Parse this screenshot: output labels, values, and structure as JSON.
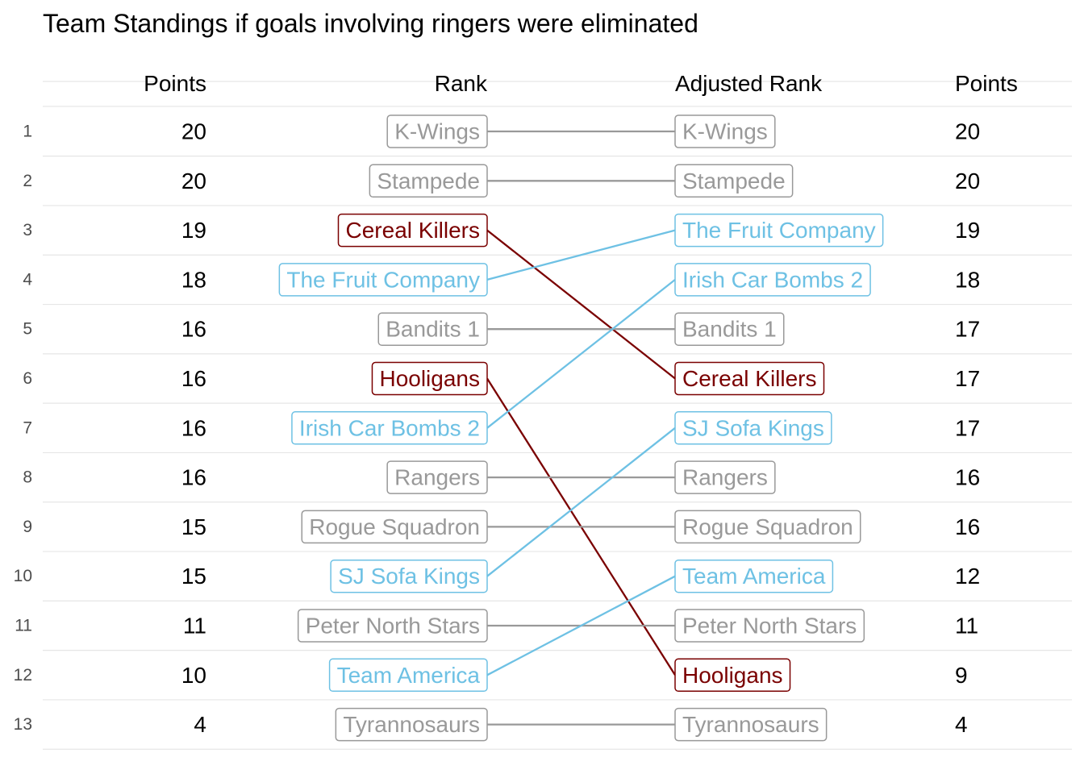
{
  "chart_data": {
    "type": "slope",
    "title": "Team Standings if goals involving ringers were eliminated",
    "headers": {
      "left_points": "Points",
      "rank": "Rank",
      "adjusted_rank": "Adjusted Rank",
      "right_points": "Points"
    },
    "row_numbers": [
      1,
      2,
      3,
      4,
      5,
      6,
      7,
      8,
      9,
      10,
      11,
      12,
      13
    ],
    "colors": {
      "unchanged": "#999999",
      "dropped": "#7a0000",
      "rose": "#6ec1e4",
      "grid": "#e6e6e6",
      "text": "#000000",
      "row_number": "#4d4d4d"
    },
    "teams": [
      {
        "name": "K-Wings",
        "rank": 1,
        "points": 20,
        "adjusted_rank": 1,
        "adjusted_points": 20,
        "status": "unchanged"
      },
      {
        "name": "Stampede",
        "rank": 2,
        "points": 20,
        "adjusted_rank": 2,
        "adjusted_points": 20,
        "status": "unchanged"
      },
      {
        "name": "Cereal Killers",
        "rank": 3,
        "points": 19,
        "adjusted_rank": 6,
        "adjusted_points": 17,
        "status": "dropped"
      },
      {
        "name": "The Fruit Company",
        "rank": 4,
        "points": 18,
        "adjusted_rank": 3,
        "adjusted_points": 19,
        "status": "rose"
      },
      {
        "name": "Bandits 1",
        "rank": 5,
        "points": 16,
        "adjusted_rank": 5,
        "adjusted_points": 17,
        "status": "unchanged"
      },
      {
        "name": "Hooligans",
        "rank": 6,
        "points": 16,
        "adjusted_rank": 12,
        "adjusted_points": 9,
        "status": "dropped"
      },
      {
        "name": "Irish Car Bombs 2",
        "rank": 7,
        "points": 16,
        "adjusted_rank": 4,
        "adjusted_points": 18,
        "status": "rose"
      },
      {
        "name": "Rangers",
        "rank": 8,
        "points": 16,
        "adjusted_rank": 8,
        "adjusted_points": 16,
        "status": "unchanged"
      },
      {
        "name": "Rogue Squadron",
        "rank": 9,
        "points": 15,
        "adjusted_rank": 9,
        "adjusted_points": 16,
        "status": "unchanged"
      },
      {
        "name": "SJ Sofa Kings",
        "rank": 10,
        "points": 15,
        "adjusted_rank": 7,
        "adjusted_points": 17,
        "status": "rose"
      },
      {
        "name": "Peter North Stars",
        "rank": 11,
        "points": 11,
        "adjusted_rank": 11,
        "adjusted_points": 11,
        "status": "unchanged"
      },
      {
        "name": "Team America",
        "rank": 12,
        "points": 10,
        "adjusted_rank": 10,
        "adjusted_points": 12,
        "status": "rose"
      },
      {
        "name": "Tyrannosaurs",
        "rank": 13,
        "points": 4,
        "adjusted_rank": 13,
        "adjusted_points": 4,
        "status": "unchanged"
      }
    ]
  }
}
